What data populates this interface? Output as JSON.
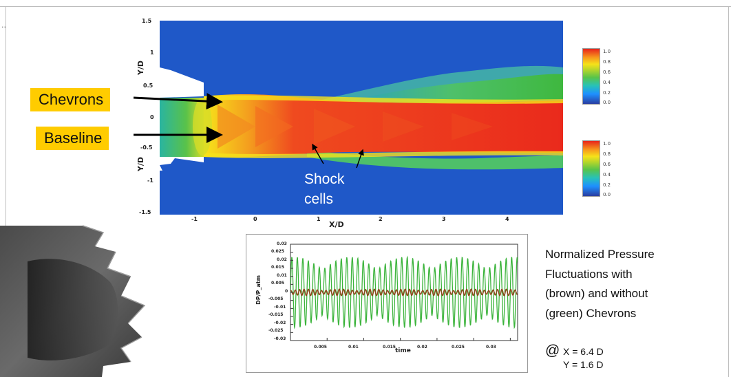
{
  "figure": {
    "callouts": {
      "chevrons": "Chevrons",
      "baseline": "Baseline"
    },
    "shock_label_line1": "Shock",
    "shock_label_line2": "cells",
    "contour": {
      "y_axis_label": "Y/D",
      "x_axis_label": "X/D",
      "y_ticks": [
        "1.5",
        "1",
        "0.5",
        "0",
        "-0.5",
        "-1",
        "-1.5"
      ],
      "x_ticks": [
        "-1",
        "0",
        "1",
        "2",
        "3",
        "4"
      ]
    },
    "colorbar_top": [
      "1.0",
      "0.8",
      "0.6",
      "0.4",
      "0.2",
      "0.0"
    ],
    "colorbar_bottom": [
      "1.0",
      "0.8",
      "0.6",
      "0.4",
      "0.2",
      "0.0"
    ],
    "colors": {
      "callout_bg": "#ffcc00",
      "green_signal": "#3cb43c",
      "brown_signal": "#8b4a1c"
    }
  },
  "chart_data": {
    "type": "line",
    "xlabel": "time",
    "ylabel": "DP/P_atm",
    "xlim": [
      0,
      0.031
    ],
    "ylim": [
      -0.03,
      0.03
    ],
    "x_ticks": [
      "0.005",
      "0.01",
      "0.015",
      "0.02",
      "0.025",
      "0.03"
    ],
    "y_ticks": [
      "0.03",
      "0.025",
      "0.02",
      "0.015",
      "0.01",
      "0.005",
      "0",
      "-0.005",
      "-0.01",
      "-0.015",
      "-0.02",
      "-0.025",
      "-0.03"
    ],
    "series": [
      {
        "color": "#3cb43c",
        "amplitude": 0.022,
        "period": 0.00075
      },
      {
        "color": "#8b4a1c",
        "amplitude": 0.002,
        "period": 0.0006
      }
    ]
  },
  "description": {
    "lines": [
      "Normalized Pressure",
      "Fluctuations with",
      "(brown) and without",
      "(green) Chevrons"
    ],
    "at": "@",
    "x_loc": "X = 6.4 D",
    "y_loc": "Y = 1.6 D"
  }
}
